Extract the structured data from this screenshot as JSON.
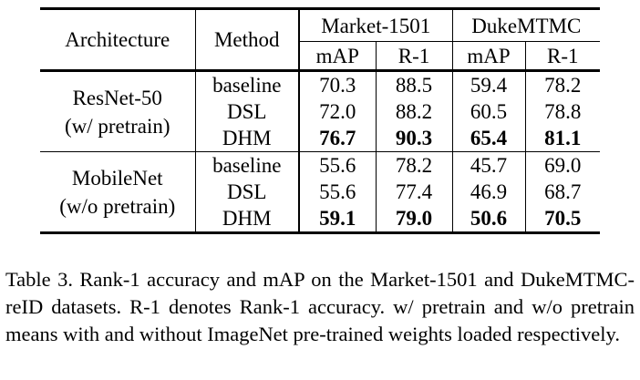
{
  "table": {
    "header": {
      "architecture": "Architecture",
      "method": "Method",
      "dataset1": "Market-1501",
      "dataset2": "DukeMTMC",
      "sub": [
        "mAP",
        "R-1",
        "mAP",
        "R-1"
      ]
    },
    "groups": [
      {
        "arch_line1": "ResNet-50",
        "arch_line2": "(w/ pretrain)",
        "rows": [
          {
            "method": "baseline",
            "values": [
              "70.3",
              "88.5",
              "59.4",
              "78.2"
            ],
            "bold": false
          },
          {
            "method": "DSL",
            "values": [
              "72.0",
              "88.2",
              "60.5",
              "78.8"
            ],
            "bold": false
          },
          {
            "method": "DHM",
            "values": [
              "76.7",
              "90.3",
              "65.4",
              "81.1"
            ],
            "bold": true
          }
        ]
      },
      {
        "arch_line1": "MobileNet",
        "arch_line2": "(w/o pretrain)",
        "rows": [
          {
            "method": "baseline",
            "values": [
              "55.6",
              "78.2",
              "45.7",
              "69.0"
            ],
            "bold": false
          },
          {
            "method": "DSL",
            "values": [
              "55.6",
              "77.4",
              "46.9",
              "68.7"
            ],
            "bold": false
          },
          {
            "method": "DHM",
            "values": [
              "59.1",
              "79.0",
              "50.6",
              "70.5"
            ],
            "bold": true
          }
        ]
      }
    ]
  },
  "caption": "Table 3. Rank-1 accuracy and mAP on the Market-1501 and DukeMTMC-reID datasets.  R-1 denotes Rank-1 accuracy.  w/ pretrain and w/o pretrain means with and without ImageNet pre-trained weights loaded respectively."
}
